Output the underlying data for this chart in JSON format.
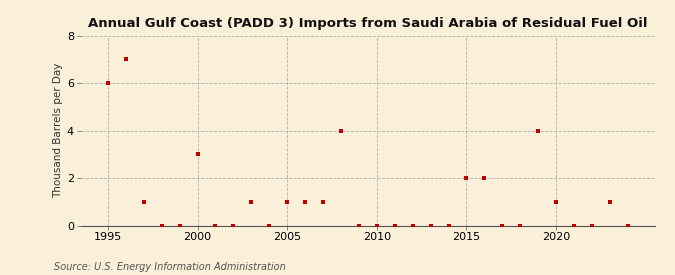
{
  "title": "Annual Gulf Coast (PADD 3) Imports from Saudi Arabia of Residual Fuel Oil",
  "ylabel": "Thousand Barrels per Day",
  "source": "Source: U.S. Energy Information Administration",
  "background_color": "#faefd9",
  "plot_bg_color": "#faefd9",
  "marker_color": "#c00000",
  "marker": "s",
  "marker_size": 3.5,
  "xlim": [
    1993.5,
    2025.5
  ],
  "ylim": [
    0,
    8
  ],
  "yticks": [
    0,
    2,
    4,
    6,
    8
  ],
  "xticks": [
    1995,
    2000,
    2005,
    2010,
    2015,
    2020
  ],
  "grid_color": "#b0b0b0",
  "title_fontsize": 9.5,
  "label_fontsize": 7.5,
  "tick_fontsize": 8,
  "source_fontsize": 7,
  "data_x": [
    1995,
    1996,
    1997,
    1998,
    1999,
    2000,
    2001,
    2002,
    2003,
    2004,
    2005,
    2006,
    2007,
    2008,
    2009,
    2010,
    2011,
    2012,
    2013,
    2014,
    2015,
    2016,
    2017,
    2018,
    2019,
    2020,
    2021,
    2022,
    2023,
    2024
  ],
  "data_y": [
    6.0,
    7.0,
    1.0,
    0.0,
    0.0,
    3.0,
    0.0,
    0.0,
    1.0,
    0.0,
    1.0,
    1.0,
    1.0,
    4.0,
    0.0,
    0.0,
    0.0,
    0.0,
    0.0,
    0.0,
    2.0,
    2.0,
    0.0,
    0.0,
    4.0,
    1.0,
    0.0,
    0.0,
    1.0,
    0.0
  ]
}
